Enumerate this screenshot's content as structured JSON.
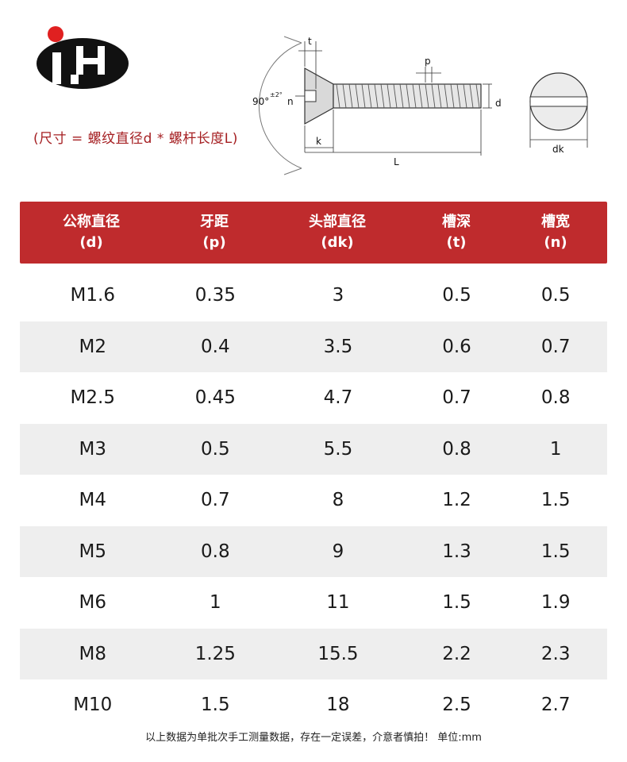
{
  "size_note": "(尺寸 = 螺纹直径d * 螺杆长度L)",
  "diagram_labels": {
    "t": "t",
    "p": "p",
    "angle": "90°",
    "tolerance": "±2°",
    "n": "n",
    "d": "d",
    "k": "k",
    "L": "L",
    "dk": "dk"
  },
  "table": {
    "headers": [
      {
        "name": "公称直径",
        "sym": "(d)"
      },
      {
        "name": "牙距",
        "sym": "(p)"
      },
      {
        "name": "头部直径",
        "sym": "(dk)"
      },
      {
        "name": "槽深",
        "sym": "(t)"
      },
      {
        "name": "槽宽",
        "sym": "(n)"
      }
    ],
    "rows": [
      [
        "M1.6",
        "0.35",
        "3",
        "0.5",
        "0.5"
      ],
      [
        "M2",
        "0.4",
        "3.5",
        "0.6",
        "0.7"
      ],
      [
        "M2.5",
        "0.45",
        "4.7",
        "0.7",
        "0.8"
      ],
      [
        "M3",
        "0.5",
        "5.5",
        "0.8",
        "1"
      ],
      [
        "M4",
        "0.7",
        "8",
        "1.2",
        "1.5"
      ],
      [
        "M5",
        "0.8",
        "9",
        "1.3",
        "1.5"
      ],
      [
        "M6",
        "1",
        "11",
        "1.5",
        "1.9"
      ],
      [
        "M8",
        "1.25",
        "15.5",
        "2.2",
        "2.3"
      ],
      [
        "M10",
        "1.5",
        "18",
        "2.5",
        "2.7"
      ]
    ]
  },
  "footer": "以上数据为单批次手工测量数据，存在一定误差，介意者慎拍！ 单位:mm",
  "colors": {
    "header_bg": "#bf2b2d",
    "note_text": "#a51f22",
    "logo_dot": "#e02020",
    "row_alt": "#eeeeee"
  }
}
